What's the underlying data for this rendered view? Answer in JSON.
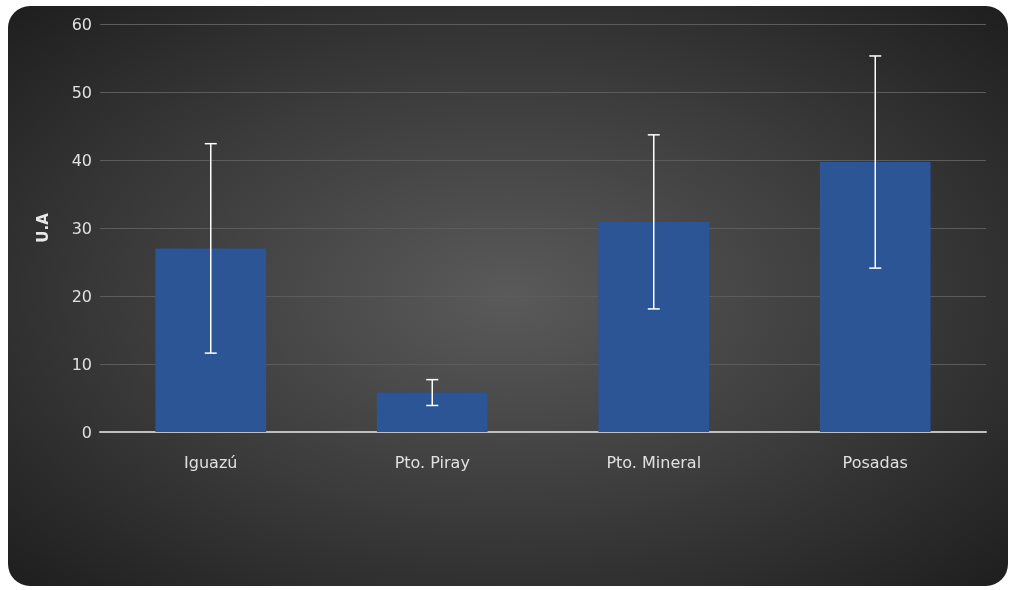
{
  "chart_data": {
    "type": "bar",
    "ylabel": "U.A",
    "categories": [
      "Iguazú",
      "Pto. Piray",
      "Pto. Mineral",
      "Posadas"
    ],
    "values": [
      27,
      5.8,
      30.9,
      39.7
    ],
    "errors": [
      15.4,
      1.9,
      12.8,
      15.6
    ],
    "color": "#2b5594",
    "ylim": [
      0,
      60
    ],
    "yticks": [
      0,
      10,
      20,
      30,
      40,
      50,
      60
    ],
    "grid": "y"
  }
}
